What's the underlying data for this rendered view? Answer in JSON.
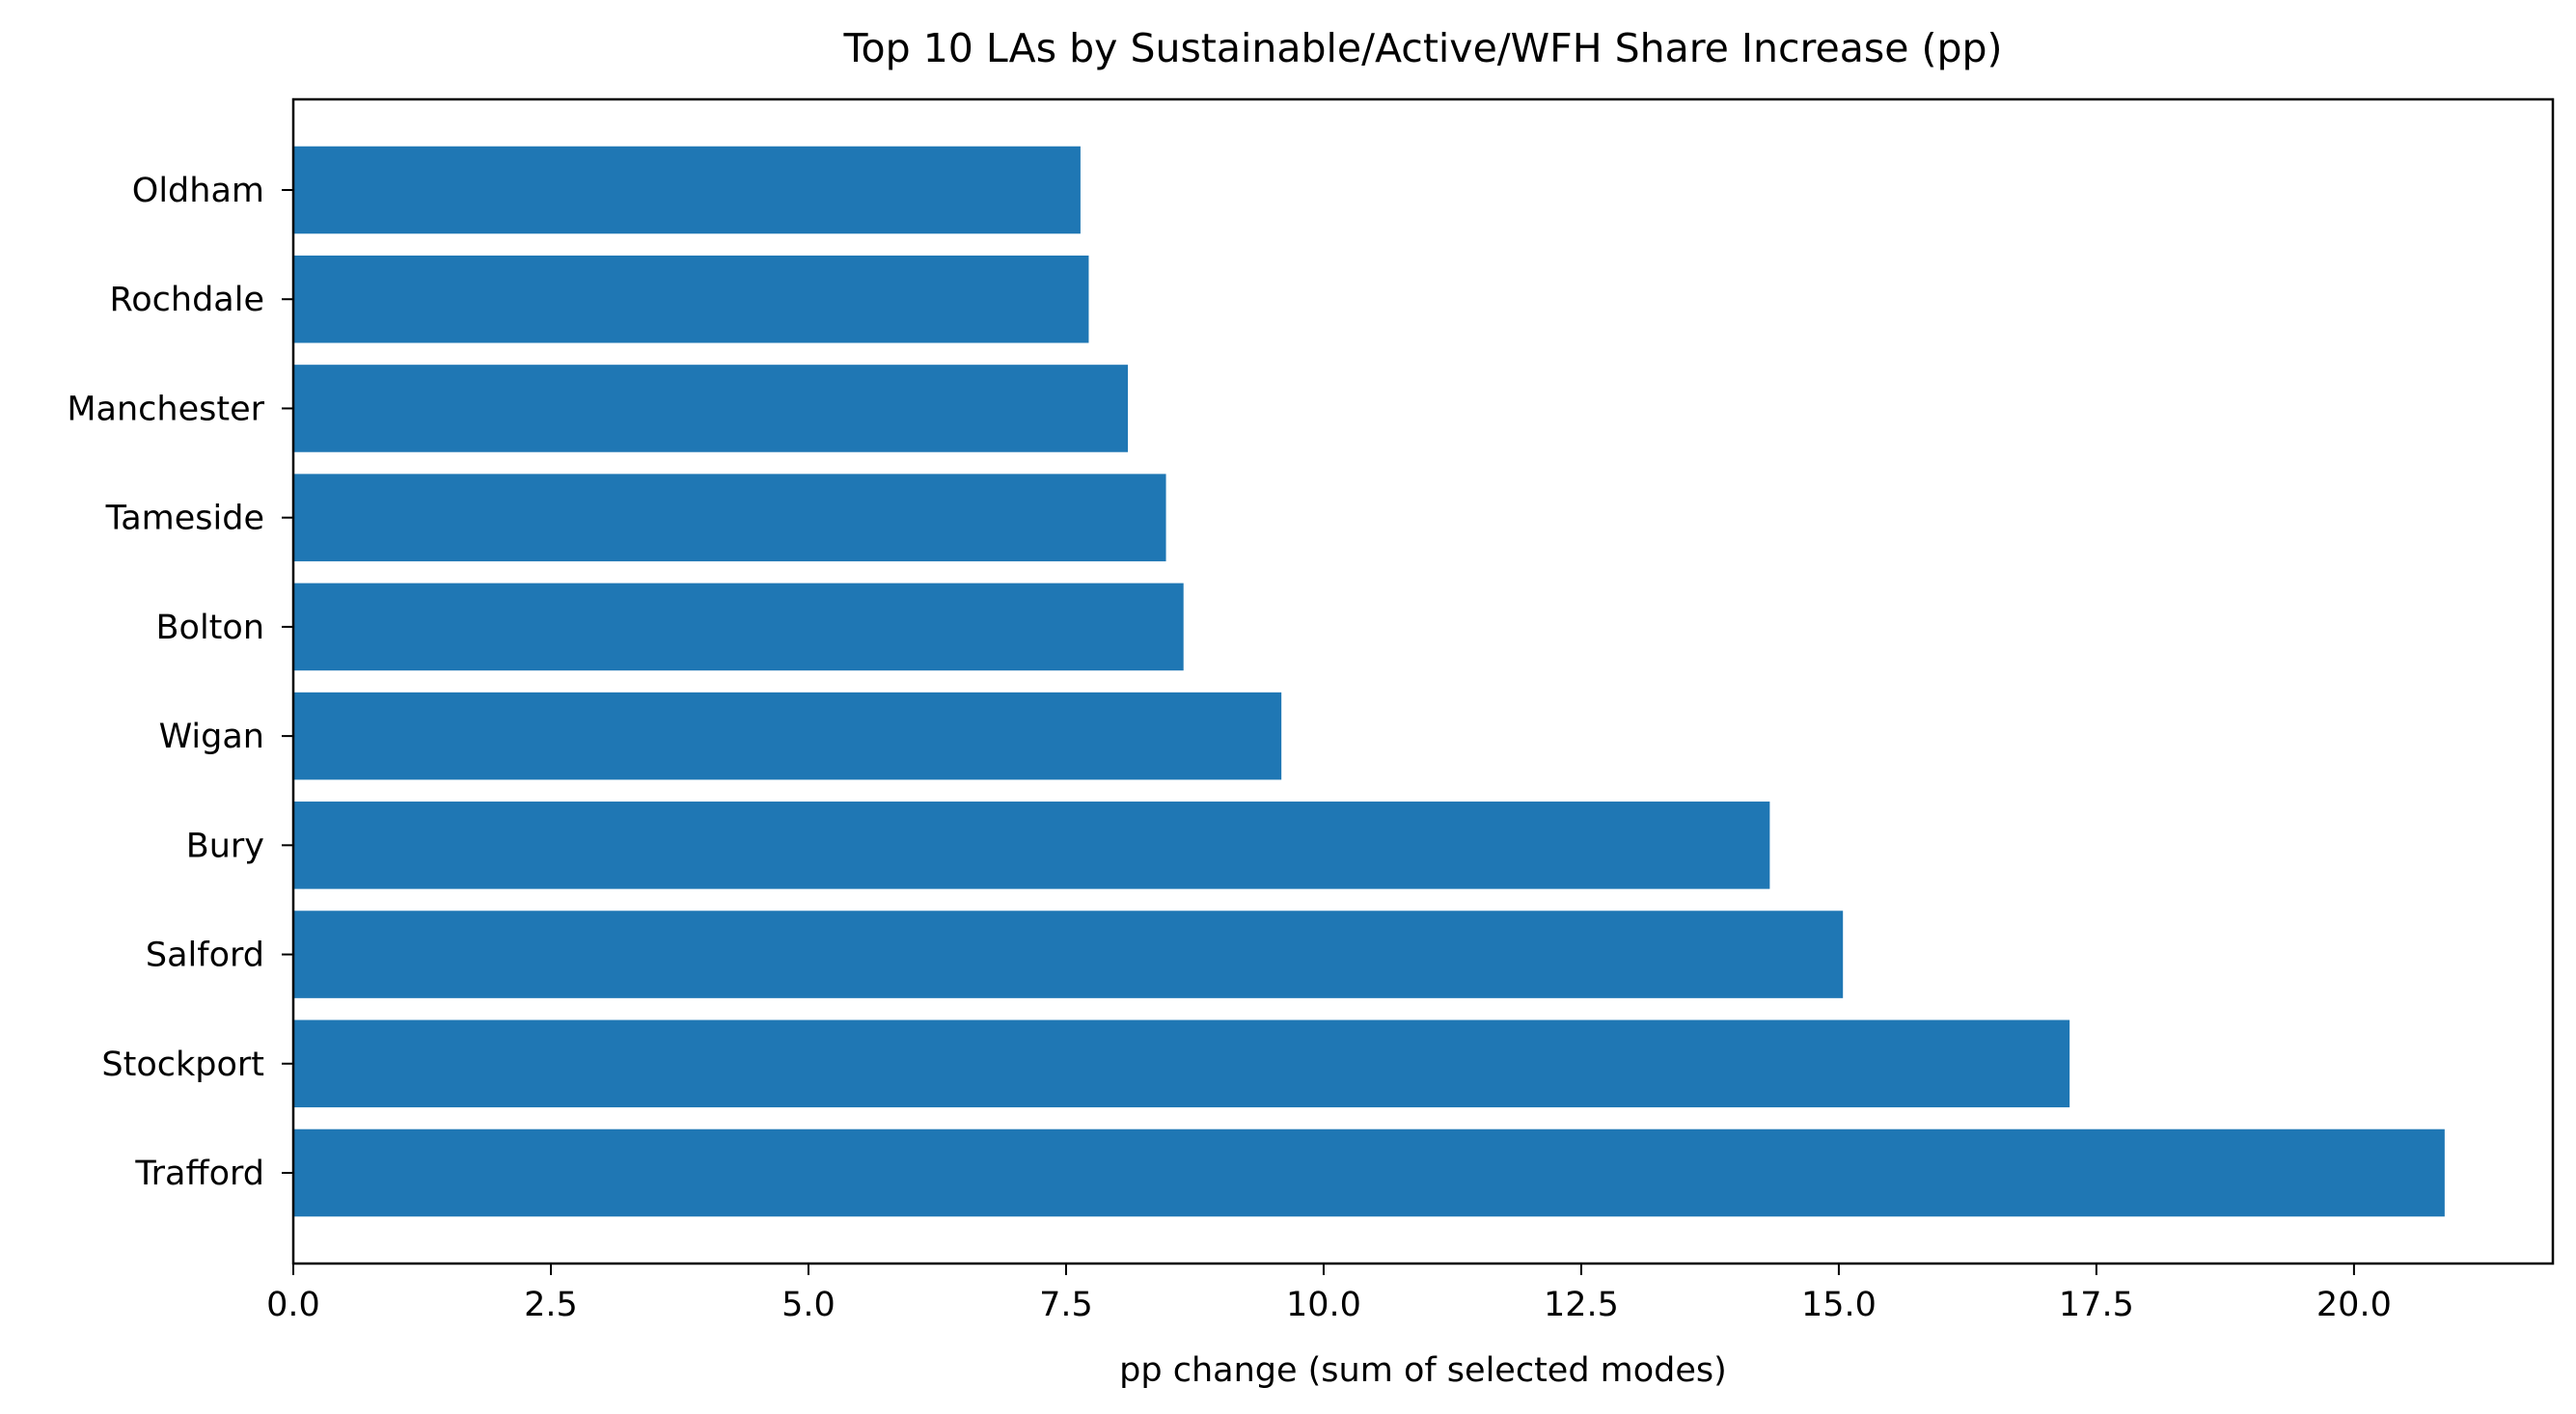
{
  "chart_data": {
    "type": "bar",
    "orientation": "horizontal",
    "title": "Top 10 LAs by Sustainable/Active/WFH Share Increase (pp)",
    "xlabel": "pp change (sum of selected modes)",
    "ylabel": "",
    "categories": [
      "Oldham",
      "Rochdale",
      "Manchester",
      "Tameside",
      "Bolton",
      "Wigan",
      "Bury",
      "Salford",
      "Stockport",
      "Trafford"
    ],
    "values": [
      7.64,
      7.72,
      8.1,
      8.47,
      8.64,
      9.59,
      14.33,
      15.04,
      17.24,
      20.88
    ],
    "xlim": [
      0,
      21.93
    ],
    "xticks": [
      0.0,
      2.5,
      5.0,
      7.5,
      10.0,
      12.5,
      15.0,
      17.5,
      20.0
    ],
    "xtick_labels": [
      "0.0",
      "2.5",
      "5.0",
      "7.5",
      "10.0",
      "12.5",
      "15.0",
      "17.5",
      "20.0"
    ],
    "bar_color": "#1f77b4",
    "grid": false,
    "legend": "none"
  }
}
